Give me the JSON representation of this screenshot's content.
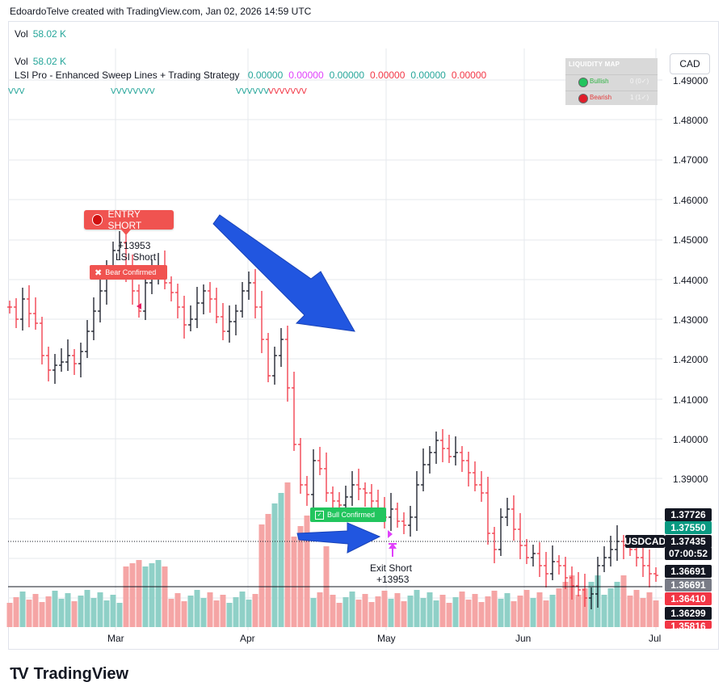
{
  "header": {
    "attribution": "EdoardoTelve created with TradingView.com, Jan 02, 2026 14:59 UTC"
  },
  "legend": {
    "vol_top": {
      "label": "Vol",
      "value": "58.02 K"
    },
    "vol": {
      "label": "Vol",
      "value": "58.02 K"
    },
    "indicator": {
      "name": "LSI Pro - Enhanced Sweep Lines + Trading Strategy",
      "values": [
        {
          "text": "0.00000",
          "color": "#26a69a"
        },
        {
          "text": "0.00000",
          "color": "#e040fb"
        },
        {
          "text": "0.00000",
          "color": "#26a69a"
        },
        {
          "text": "0.00000",
          "color": "#f23645"
        },
        {
          "text": "0.00000",
          "color": "#26a69a"
        },
        {
          "text": "0.00000",
          "color": "#f23645"
        }
      ]
    }
  },
  "currency": "CAD",
  "liquidity_map": {
    "title": "LIQUIDITY MAP",
    "rows": [
      {
        "label": "Bullish",
        "count": "0 (0✓)",
        "color": "#22c55e",
        "text_color": "#2fb344"
      },
      {
        "label": "Bearish",
        "count": "1 (1✓)",
        "color": "#e11d2a",
        "text_color": "#e33b3b"
      }
    ]
  },
  "y_axis": [
    "1.49000",
    "1.48000",
    "1.47000",
    "1.46000",
    "1.45000",
    "1.44000",
    "1.43000",
    "1.42000",
    "1.41000",
    "1.40000",
    "1.39000"
  ],
  "price_tags": [
    {
      "text": "1.37726",
      "bg": "#131722"
    },
    {
      "text": "1.37550",
      "bg": "#089981"
    },
    {
      "text": "USDCAD",
      "bg": "#131722"
    },
    {
      "text": "1.37435",
      "bg": "#131722"
    },
    {
      "text": "07:00:52",
      "bg": "#131722"
    },
    {
      "text": "1.36691",
      "bg": "#131722"
    },
    {
      "text": "1.36691",
      "bg": "#787b86"
    },
    {
      "text": "1.36410",
      "bg": "#f23645"
    },
    {
      "text": "1.36299",
      "bg": "#131722"
    },
    {
      "text": "1.35816",
      "bg": "#f23645"
    }
  ],
  "x_axis": [
    "Mar",
    "Apr",
    "May",
    "Jun",
    "Jul"
  ],
  "annotations": {
    "entry_short": "ENTRY SHORT",
    "lsi_num": "+13953",
    "lsi_short": "LSI Short",
    "bear_confirmed": "Bear Confirmed",
    "bull_confirmed": "Bull Confirmed",
    "exit_short": "Exit Short",
    "exit_num": "+13953"
  },
  "brand": {
    "logo": "TradingView"
  },
  "colors": {
    "bull": "#26a69a",
    "bear": "#f23645",
    "vol_bull": "#8fd0c7",
    "vol_bear": "#f5a5a5",
    "arrow": "#2156e0"
  }
}
